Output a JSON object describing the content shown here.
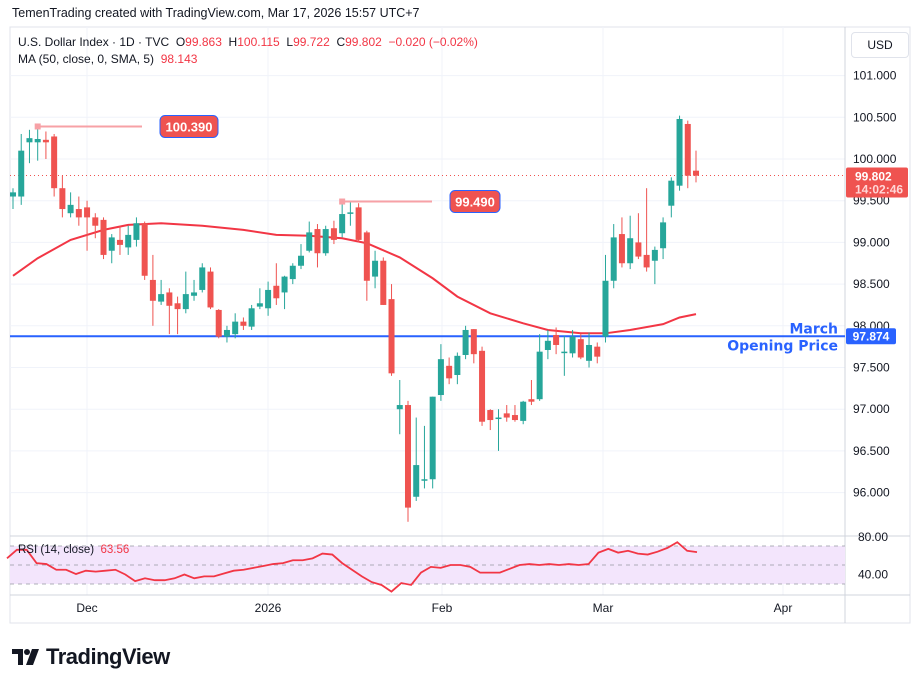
{
  "credit": "TemenTrading created with TradingView.com, Mar 17, 2026 15:57 UTC+7",
  "legend": {
    "symbol": "U.S. Dollar Index · 1D · TVC",
    "o_label": "O",
    "o": "99.863",
    "h_label": "H",
    "h": "100.115",
    "l_label": "L",
    "l": "99.722",
    "c_label": "C",
    "c": "99.802",
    "change": "−0.020 (−0.02%)",
    "ma_label": "MA (50, close, 0, SMA, 5)",
    "ma_value": "98.143",
    "rsi_label": "RSI (14, close)",
    "rsi_value": "63.56"
  },
  "currency_button": "USD",
  "logo_text": "TradingView",
  "colors": {
    "up": "#26a69a",
    "down": "#ef5350",
    "ma": "#f23645",
    "level": "#2962ff",
    "rsi": "#f23645",
    "rsi_band": "#f3e5fc"
  },
  "chart_data": [
    {
      "type": "candlestick",
      "title": "U.S. Dollar Index · 1D · TVC",
      "ylim": [
        95.6,
        101.2
      ],
      "y_ticks": [
        "101.000",
        "100.500",
        "100.000",
        "99.500",
        "99.000",
        "98.500",
        "98.000",
        "97.500",
        "97.000",
        "96.500",
        "96.000"
      ],
      "x_ticks": [
        "Dec",
        "2026",
        "Feb",
        "Mar",
        "Apr"
      ],
      "grid": true,
      "ohlc": [
        [
          99.55,
          99.6,
          99.65,
          99.4
        ],
        [
          99.55,
          100.1,
          100.3,
          99.45
        ],
        [
          100.2,
          100.25,
          100.35,
          99.95
        ],
        [
          100.2,
          100.24,
          100.39,
          99.98
        ],
        [
          100.23,
          100.2,
          100.33,
          100.0
        ],
        [
          100.27,
          99.65,
          100.3,
          99.55
        ],
        [
          99.65,
          99.4,
          99.8,
          99.3
        ],
        [
          99.35,
          99.45,
          99.6,
          99.3
        ],
        [
          99.4,
          99.3,
          99.55,
          99.2
        ],
        [
          99.42,
          99.3,
          99.5,
          98.9
        ],
        [
          99.3,
          99.2,
          99.35,
          99.05
        ],
        [
          99.27,
          98.85,
          99.3,
          98.8
        ],
        [
          98.9,
          99.06,
          99.1,
          98.75
        ],
        [
          99.03,
          98.97,
          99.2,
          98.85
        ],
        [
          98.94,
          99.09,
          99.2,
          98.85
        ],
        [
          99.03,
          99.23,
          99.3,
          98.95
        ],
        [
          99.23,
          98.6,
          99.25,
          98.55
        ],
        [
          98.55,
          98.3,
          98.85,
          98.0
        ],
        [
          98.29,
          98.38,
          98.55,
          98.25
        ],
        [
          98.4,
          98.24,
          98.45,
          97.9
        ],
        [
          98.27,
          98.2,
          98.35,
          97.9
        ],
        [
          98.2,
          98.38,
          98.65,
          98.15
        ],
        [
          98.36,
          98.4,
          98.55,
          98.3
        ],
        [
          98.43,
          98.7,
          98.75,
          98.4
        ],
        [
          98.65,
          98.22,
          98.7,
          98.2
        ],
        [
          98.19,
          97.87,
          98.2,
          97.85
        ],
        [
          97.87,
          97.95,
          98.0,
          97.8
        ],
        [
          97.9,
          98.05,
          98.15,
          97.85
        ],
        [
          98.05,
          98.0,
          98.1,
          97.95
        ],
        [
          97.99,
          98.21,
          98.25,
          97.95
        ],
        [
          98.23,
          98.27,
          98.45,
          98.2
        ],
        [
          98.21,
          98.43,
          98.53,
          98.12
        ],
        [
          98.48,
          98.33,
          98.75,
          98.25
        ],
        [
          98.4,
          98.59,
          98.6,
          98.2
        ],
        [
          98.56,
          98.72,
          98.75,
          98.5
        ],
        [
          98.72,
          98.84,
          98.98,
          98.68
        ],
        [
          98.9,
          99.12,
          99.25,
          98.88
        ],
        [
          99.16,
          98.87,
          99.22,
          98.7
        ],
        [
          98.87,
          99.16,
          99.2,
          98.84
        ],
        [
          99.17,
          99.03,
          99.26,
          98.98
        ],
        [
          99.11,
          99.34,
          99.49,
          99.06
        ],
        [
          99.36,
          99.36,
          99.49,
          99.2
        ],
        [
          99.42,
          99.03,
          99.47,
          99.0
        ],
        [
          99.12,
          98.54,
          99.14,
          98.3
        ],
        [
          98.59,
          98.78,
          98.9,
          98.45
        ],
        [
          98.78,
          98.25,
          98.82,
          98.25
        ],
        [
          98.32,
          97.43,
          98.5,
          97.4
        ],
        [
          97.0,
          97.05,
          97.35,
          96.7
        ],
        [
          97.05,
          95.82,
          97.1,
          95.65
        ],
        [
          95.95,
          96.33,
          96.9,
          95.9
        ],
        [
          96.16,
          96.16,
          96.8,
          96.05
        ],
        [
          96.16,
          97.15,
          97.15,
          96.05
        ],
        [
          97.17,
          97.6,
          97.78,
          97.1
        ],
        [
          97.52,
          97.37,
          97.62,
          97.3
        ],
        [
          97.41,
          97.64,
          97.68,
          97.3
        ],
        [
          97.65,
          97.95,
          98.0,
          97.6
        ],
        [
          97.96,
          97.66,
          97.96,
          97.55
        ],
        [
          97.7,
          96.85,
          97.75,
          96.8
        ],
        [
          96.99,
          96.87,
          97.0,
          96.75
        ],
        [
          96.9,
          96.9,
          97.0,
          96.5
        ],
        [
          96.95,
          96.9,
          97.05,
          96.85
        ],
        [
          96.93,
          96.87,
          97.05,
          96.85
        ],
        [
          96.86,
          97.09,
          97.1,
          96.82
        ],
        [
          97.12,
          97.09,
          97.35,
          97.05
        ],
        [
          97.12,
          97.69,
          97.9,
          97.1
        ],
        [
          97.71,
          97.82,
          97.95,
          97.6
        ],
        [
          97.89,
          97.77,
          97.98,
          97.66
        ],
        [
          97.69,
          97.69,
          97.88,
          97.4
        ],
        [
          97.67,
          97.87,
          97.95,
          97.62
        ],
        [
          97.84,
          97.62,
          97.9,
          97.6
        ],
        [
          97.58,
          97.77,
          97.92,
          97.5
        ],
        [
          97.75,
          97.63,
          97.8,
          97.55
        ],
        [
          97.87,
          98.54,
          98.85,
          97.8
        ],
        [
          98.54,
          99.06,
          99.22,
          98.45
        ],
        [
          99.1,
          98.75,
          99.3,
          98.7
        ],
        [
          98.75,
          99.05,
          99.32,
          98.68
        ],
        [
          99.0,
          98.83,
          99.35,
          98.8
        ],
        [
          98.85,
          98.7,
          99.65,
          98.65
        ],
        [
          98.78,
          98.91,
          98.95,
          98.5
        ],
        [
          98.93,
          99.24,
          99.3,
          98.8
        ],
        [
          99.44,
          99.74,
          99.78,
          99.3
        ],
        [
          99.68,
          100.48,
          100.52,
          99.62
        ],
        [
          100.42,
          99.8,
          100.46,
          99.65
        ],
        [
          99.86,
          99.8,
          100.1,
          99.72
        ]
      ],
      "ma": {
        "name": "MA (50, close, 0, SMA, 5)",
        "points": [
          [
            0,
            98.6
          ],
          [
            3,
            98.81
          ],
          [
            7,
            99.03
          ],
          [
            11,
            99.15
          ],
          [
            14,
            99.21
          ],
          [
            18,
            99.23
          ],
          [
            23,
            99.2
          ],
          [
            28,
            99.15
          ],
          [
            32,
            99.09
          ],
          [
            36,
            99.08
          ],
          [
            40,
            99.05
          ],
          [
            43,
            98.99
          ],
          [
            47,
            98.82
          ],
          [
            51,
            98.57
          ],
          [
            54,
            98.35
          ],
          [
            58,
            98.15
          ],
          [
            62,
            98.03
          ],
          [
            65,
            97.95
          ],
          [
            69,
            97.91
          ],
          [
            72,
            97.91
          ],
          [
            75,
            97.95
          ],
          [
            79,
            98.02
          ],
          [
            81,
            98.1
          ],
          [
            83,
            98.14
          ]
        ]
      },
      "last_price": {
        "value": "99.802",
        "countdown": "14:02:46"
      },
      "annotations": [
        {
          "label": "100.390",
          "bar": 3,
          "price": 100.39
        },
        {
          "label": "99.490",
          "bar": 40,
          "price": 99.49
        }
      ],
      "level": {
        "price": 97.874,
        "label": "97.874",
        "text1": "March",
        "text2": "Opening Price"
      }
    },
    {
      "type": "line",
      "title": "RSI (14, close)",
      "ylim": [
        20,
        80
      ],
      "y_ticks": [
        "80.00",
        "40.00"
      ],
      "band": [
        30,
        70
      ],
      "values": [
        57,
        66,
        66,
        52,
        51,
        45,
        45,
        40.5,
        44,
        43,
        44,
        45,
        40,
        33,
        36,
        34,
        34,
        36,
        40,
        36,
        38,
        38,
        41,
        44,
        45,
        47,
        49,
        51,
        52,
        55,
        55,
        57,
        62,
        61,
        52,
        45,
        38,
        32,
        29,
        22,
        31,
        29,
        42,
        48,
        47,
        50,
        50,
        48,
        42,
        42,
        42,
        46,
        50,
        51,
        50,
        51,
        50,
        51,
        50,
        51,
        63,
        67,
        63,
        65,
        62,
        61,
        64,
        68,
        74,
        65,
        63.56
      ]
    }
  ]
}
